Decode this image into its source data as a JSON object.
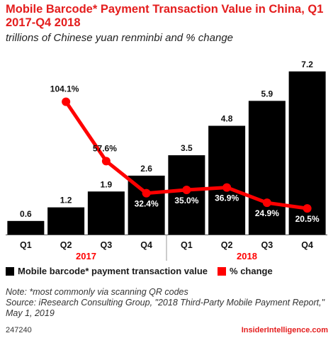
{
  "header": {
    "title": "Mobile Barcode* Payment Transaction Value in China, Q1 2017-Q4 2018",
    "subtitle": "trillions of Chinese yuan renminbi and % change"
  },
  "legend": {
    "bar_label": "Mobile barcode* payment transaction value",
    "line_label": "% change"
  },
  "notes": {
    "note": "Note: *most commonly via scanning QR codes",
    "source": "Source: iResearch Consulting Group, \"2018 Third-Party Mobile Payment Report,\" May 1, 2019"
  },
  "footer": {
    "chart_id": "247240",
    "brand": "InsiderIntelligence.com"
  },
  "colors": {
    "bar": "#000000",
    "line": "#ff0000",
    "title": "#e41d1d"
  },
  "chart_data": {
    "type": "bar",
    "categories": [
      "Q1",
      "Q2",
      "Q3",
      "Q4",
      "Q1",
      "Q2",
      "Q3",
      "Q4"
    ],
    "groups": [
      {
        "label": "2017",
        "categories": [
          "Q1",
          "Q2",
          "Q3",
          "Q4"
        ]
      },
      {
        "label": "2018",
        "categories": [
          "Q1",
          "Q2",
          "Q3",
          "Q4"
        ]
      }
    ],
    "series": [
      {
        "name": "Mobile barcode* payment transaction value",
        "type": "bar",
        "values": [
          0.6,
          1.2,
          1.9,
          2.6,
          3.5,
          4.8,
          5.9,
          7.2
        ],
        "labels": [
          "0.6",
          "1.2",
          "1.9",
          "2.6",
          "3.5",
          "4.8",
          "5.9",
          "7.2"
        ]
      },
      {
        "name": "% change",
        "type": "line",
        "values": [
          null,
          104.1,
          57.6,
          32.4,
          35.0,
          36.9,
          24.9,
          20.5
        ],
        "labels": [
          "",
          "104.1%",
          "57.6%",
          "32.4%",
          "35.0%",
          "36.9%",
          "24.9%",
          "20.5%"
        ]
      }
    ],
    "ylim": [
      0,
      7.6
    ],
    "y2lim": [
      0,
      135
    ],
    "grid": false,
    "legend_position": "bottom-left"
  }
}
